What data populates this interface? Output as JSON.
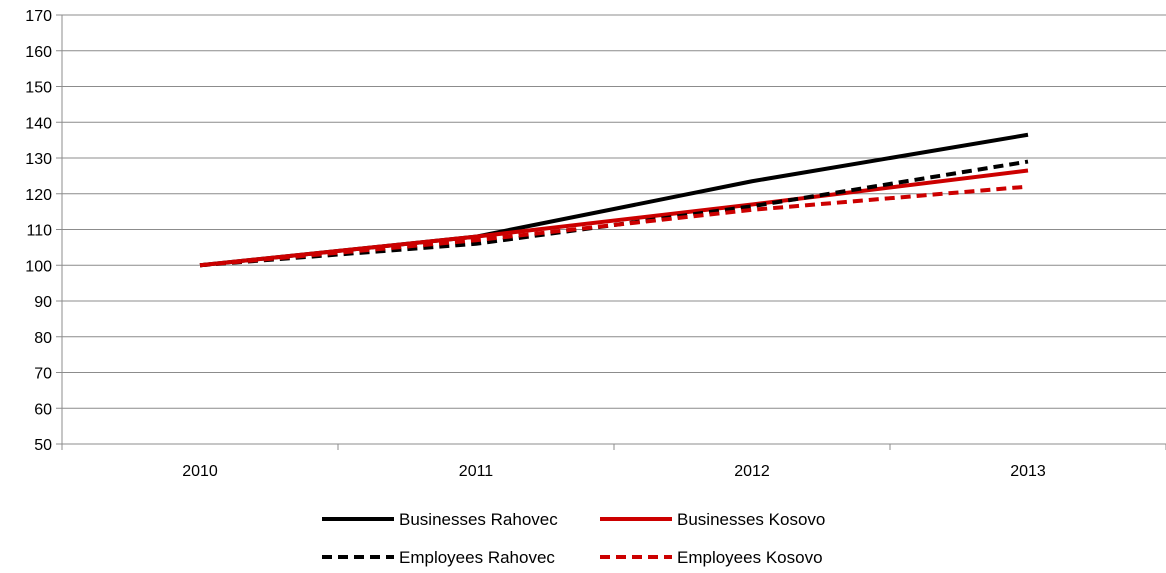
{
  "chart_data": {
    "type": "line",
    "categories": [
      "2010",
      "2011",
      "2012",
      "2013"
    ],
    "ylim": [
      50,
      170
    ],
    "yticks": [
      50,
      60,
      70,
      80,
      90,
      100,
      110,
      120,
      130,
      140,
      150,
      160,
      170
    ],
    "grid": true,
    "legend_position": "bottom",
    "series": [
      {
        "name": "Businesses Rahovec",
        "values": [
          100,
          108,
          123.5,
          136.5
        ],
        "color": "#000000",
        "dash": false
      },
      {
        "name": "Businesses Kosovo",
        "values": [
          100,
          108,
          117,
          126.5
        ],
        "color": "#cc0000",
        "dash": false
      },
      {
        "name": "Employees Rahovec",
        "values": [
          100,
          106,
          116.5,
          129
        ],
        "color": "#000000",
        "dash": true
      },
      {
        "name": "Employees Kosovo",
        "values": [
          100,
          107,
          115.5,
          122
        ],
        "color": "#cc0000",
        "dash": true
      }
    ]
  }
}
